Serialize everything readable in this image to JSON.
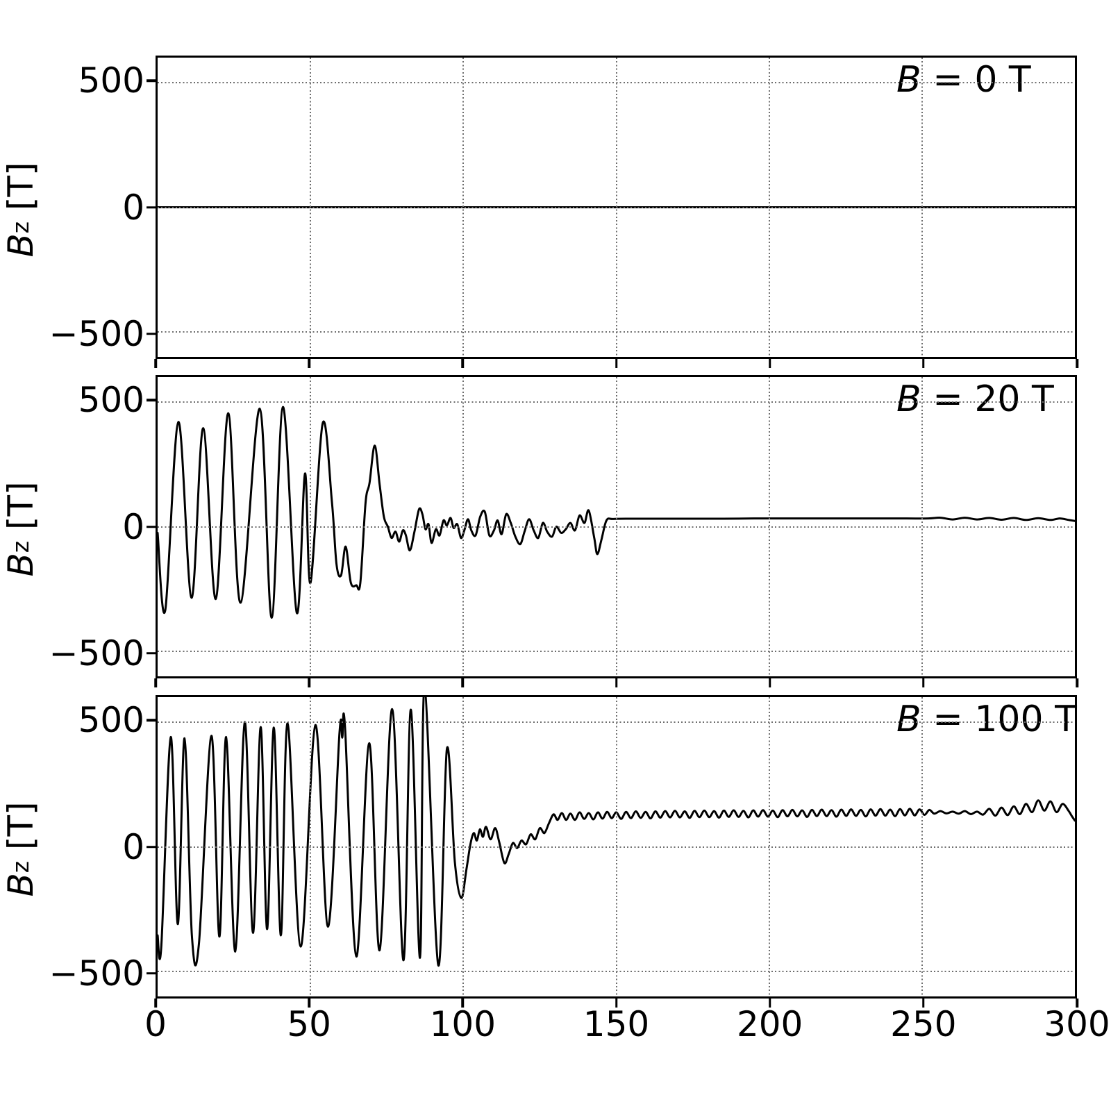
{
  "figure": {
    "background": "#ffffff",
    "data_line_color": "#000000",
    "grid_color": "#6e6e6e",
    "n_panels": 3
  },
  "x_tick_labels": [
    "0",
    "50",
    "100",
    "150",
    "200",
    "250",
    "300"
  ],
  "y_tick_labels": [
    "500",
    "0",
    "−500"
  ],
  "chart_data": [
    {
      "type": "line",
      "label_var": "B",
      "label_rest": " = 0 T",
      "ylabel_var": "B",
      "ylabel_sub": "z",
      "ylabel_unit": " [T]",
      "xlim": [
        0,
        300
      ],
      "ylim": [
        -600,
        600
      ],
      "xticks": [
        0,
        50,
        100,
        150,
        200,
        250,
        300
      ],
      "yticks": [
        500,
        0,
        -500
      ],
      "grid": true,
      "points": [
        [
          0,
          0
        ],
        [
          300,
          0
        ]
      ]
    },
    {
      "type": "line",
      "label_var": "B",
      "label_rest": " = 20 T",
      "ylabel_var": "B",
      "ylabel_sub": "z",
      "ylabel_unit": " [T]",
      "xlim": [
        0,
        300
      ],
      "ylim": [
        -600,
        600
      ],
      "xticks": [
        0,
        50,
        100,
        150,
        200,
        250,
        300
      ],
      "yticks": [
        500,
        0,
        -500
      ],
      "grid": true,
      "points": [
        [
          0,
          -25
        ],
        [
          2.5,
          -335
        ],
        [
          6.8,
          420
        ],
        [
          11.1,
          -285
        ],
        [
          14.9,
          395
        ],
        [
          19,
          -290
        ],
        [
          23.1,
          455
        ],
        [
          27.1,
          -305
        ],
        [
          33.4,
          473
        ],
        [
          37.3,
          -365
        ],
        [
          41,
          480
        ],
        [
          45.5,
          -345
        ],
        [
          48.2,
          213
        ],
        [
          50,
          -225
        ],
        [
          54,
          415
        ],
        [
          57,
          100
        ],
        [
          58.5,
          -150
        ],
        [
          60,
          -195
        ],
        [
          61.5,
          -80
        ],
        [
          63.2,
          -225
        ],
        [
          65,
          -235
        ],
        [
          66.3,
          -225
        ],
        [
          68,
          95
        ],
        [
          69.3,
          175
        ],
        [
          71,
          325
        ],
        [
          72.6,
          170
        ],
        [
          74,
          40
        ],
        [
          75.3,
          0
        ],
        [
          76.5,
          -45
        ],
        [
          77.8,
          -20
        ],
        [
          79,
          -60
        ],
        [
          80.2,
          -15
        ],
        [
          81.2,
          -35
        ],
        [
          82.5,
          -95
        ],
        [
          84,
          -20
        ],
        [
          85.5,
          70
        ],
        [
          86.6,
          50
        ],
        [
          87.6,
          -10
        ],
        [
          88.6,
          10
        ],
        [
          89.6,
          -65
        ],
        [
          91,
          -10
        ],
        [
          92.2,
          -35
        ],
        [
          93.5,
          25
        ],
        [
          94.6,
          5
        ],
        [
          95.8,
          35
        ],
        [
          96.8,
          -5
        ],
        [
          98,
          10
        ],
        [
          99.2,
          -45
        ],
        [
          100.3,
          -15
        ],
        [
          101.5,
          30
        ],
        [
          102.6,
          -15
        ],
        [
          104,
          -35
        ],
        [
          105.5,
          40
        ],
        [
          107,
          60
        ],
        [
          108.5,
          -35
        ],
        [
          110,
          -15
        ],
        [
          111.2,
          25
        ],
        [
          112.5,
          -30
        ],
        [
          114,
          50
        ],
        [
          115.5,
          15
        ],
        [
          117,
          -40
        ],
        [
          118.6,
          -70
        ],
        [
          120,
          -20
        ],
        [
          121.5,
          30
        ],
        [
          123,
          -15
        ],
        [
          124.5,
          -45
        ],
        [
          126,
          15
        ],
        [
          127.4,
          -20
        ],
        [
          129,
          -40
        ],
        [
          130.4,
          0
        ],
        [
          132,
          -25
        ],
        [
          133.5,
          -10
        ],
        [
          135,
          15
        ],
        [
          136.5,
          -15
        ],
        [
          138,
          45
        ],
        [
          139.6,
          15
        ],
        [
          141,
          65
        ],
        [
          142.8,
          -45
        ],
        [
          143.8,
          -110
        ],
        [
          145.2,
          -50
        ],
        [
          146.8,
          25
        ],
        [
          149,
          31
        ],
        [
          155,
          32
        ],
        [
          165,
          32
        ],
        [
          175,
          32
        ],
        [
          185,
          32
        ],
        [
          195,
          33
        ],
        [
          205,
          33
        ],
        [
          215,
          33
        ],
        [
          225,
          33
        ],
        [
          235,
          33
        ],
        [
          245,
          33
        ],
        [
          252,
          33
        ],
        [
          256,
          36
        ],
        [
          260,
          29
        ],
        [
          264,
          36
        ],
        [
          268,
          29
        ],
        [
          272,
          35
        ],
        [
          276,
          28
        ],
        [
          280,
          35
        ],
        [
          284,
          27
        ],
        [
          288,
          34
        ],
        [
          292,
          27
        ],
        [
          295,
          33
        ],
        [
          298,
          27
        ],
        [
          300,
          23
        ]
      ]
    },
    {
      "type": "line",
      "label_var": "B",
      "label_rest": " = 100 T",
      "ylabel_var": "B",
      "ylabel_sub": "z",
      "ylabel_unit": " [T]",
      "xlim": [
        0,
        300
      ],
      "ylim": [
        -600,
        600
      ],
      "xticks": [
        0,
        50,
        100,
        150,
        200,
        250,
        300
      ],
      "yticks": [
        500,
        0,
        -500
      ],
      "grid": true,
      "points": [
        [
          0,
          -355
        ],
        [
          1.2,
          -400
        ],
        [
          4.3,
          440
        ],
        [
          6.6,
          -310
        ],
        [
          8.8,
          435
        ],
        [
          11.2,
          -355
        ],
        [
          13.5,
          -390
        ],
        [
          17.6,
          445
        ],
        [
          20.2,
          -360
        ],
        [
          22.4,
          440
        ],
        [
          25.4,
          -420
        ],
        [
          28.5,
          500
        ],
        [
          31.2,
          -345
        ],
        [
          33.7,
          480
        ],
        [
          35.8,
          -330
        ],
        [
          38,
          478
        ],
        [
          40.3,
          -355
        ],
        [
          42.5,
          495
        ],
        [
          46.8,
          -400
        ],
        [
          51.6,
          488
        ],
        [
          55.7,
          -320
        ],
        [
          59.5,
          460
        ],
        [
          60.4,
          438
        ],
        [
          61.3,
          478
        ],
        [
          65,
          -440
        ],
        [
          69.2,
          415
        ],
        [
          72.6,
          -415
        ],
        [
          76.7,
          552
        ],
        [
          80.4,
          -455
        ],
        [
          82.8,
          550
        ],
        [
          85.8,
          -445
        ],
        [
          87.3,
          640
        ],
        [
          91.8,
          -475
        ],
        [
          94.6,
          392
        ],
        [
          97.2,
          -60
        ],
        [
          99.3,
          -205
        ],
        [
          101,
          -90
        ],
        [
          102.3,
          10
        ],
        [
          103.4,
          55
        ],
        [
          104.4,
          25
        ],
        [
          105.4,
          70
        ],
        [
          106.4,
          40
        ],
        [
          107.4,
          80
        ],
        [
          108.9,
          30
        ],
        [
          110.4,
          75
        ],
        [
          111.7,
          20
        ],
        [
          113.4,
          -65
        ],
        [
          114.8,
          -30
        ],
        [
          116.2,
          15
        ],
        [
          117.6,
          -5
        ],
        [
          119,
          25
        ],
        [
          120.5,
          10
        ],
        [
          122,
          50
        ],
        [
          123.5,
          30
        ],
        [
          125,
          75
        ],
        [
          126.5,
          55
        ],
        [
          128,
          95
        ],
        [
          129.5,
          130
        ],
        [
          130.8,
          108
        ],
        [
          132.2,
          135
        ],
        [
          133.6,
          108
        ],
        [
          135,
          133
        ],
        [
          136.5,
          108
        ],
        [
          138,
          138
        ],
        [
          139.5,
          112
        ],
        [
          141,
          135
        ],
        [
          142.5,
          110
        ],
        [
          144,
          138
        ],
        [
          145.5,
          113
        ],
        [
          147,
          140
        ],
        [
          148.5,
          115
        ],
        [
          150,
          138
        ],
        [
          151.6,
          112
        ],
        [
          153.2,
          140
        ],
        [
          154.8,
          115
        ],
        [
          156.4,
          142
        ],
        [
          158,
          116
        ],
        [
          159.6,
          140
        ],
        [
          161.2,
          114
        ],
        [
          162.8,
          142
        ],
        [
          164.4,
          117
        ],
        [
          166,
          143
        ],
        [
          167.6,
          118
        ],
        [
          169.2,
          144
        ],
        [
          170.8,
          118
        ],
        [
          172.4,
          142
        ],
        [
          174,
          116
        ],
        [
          175.6,
          144
        ],
        [
          177.2,
          119
        ],
        [
          178.8,
          145
        ],
        [
          180.4,
          119
        ],
        [
          182,
          143
        ],
        [
          183.6,
          117
        ],
        [
          185.2,
          145
        ],
        [
          186.8,
          120
        ],
        [
          188.4,
          146
        ],
        [
          190,
          120
        ],
        [
          191.6,
          144
        ],
        [
          193.2,
          118
        ],
        [
          194.8,
          146
        ],
        [
          196.4,
          121
        ],
        [
          198,
          147
        ],
        [
          199.6,
          121
        ],
        [
          201.2,
          145
        ],
        [
          202.8,
          119
        ],
        [
          204.4,
          147
        ],
        [
          206,
          122
        ],
        [
          207.6,
          148
        ],
        [
          209.2,
          122
        ],
        [
          210.8,
          146
        ],
        [
          212.4,
          120
        ],
        [
          214,
          148
        ],
        [
          215.6,
          123
        ],
        [
          217.2,
          149
        ],
        [
          218.8,
          123
        ],
        [
          220.4,
          147
        ],
        [
          222,
          121
        ],
        [
          223.6,
          149
        ],
        [
          225.2,
          124
        ],
        [
          226.8,
          150
        ],
        [
          228.4,
          124
        ],
        [
          230,
          148
        ],
        [
          231.6,
          122
        ],
        [
          233.2,
          150
        ],
        [
          234.8,
          125
        ],
        [
          236.4,
          151
        ],
        [
          238,
          125
        ],
        [
          239.6,
          149
        ],
        [
          241.2,
          123
        ],
        [
          242.8,
          151
        ],
        [
          244.4,
          126
        ],
        [
          246,
          152
        ],
        [
          247.6,
          126
        ],
        [
          249.2,
          150
        ],
        [
          250.8,
          128
        ],
        [
          252.4,
          148
        ],
        [
          254,
          133
        ],
        [
          256,
          143
        ],
        [
          258,
          134
        ],
        [
          260,
          141
        ],
        [
          262,
          133
        ],
        [
          264,
          143
        ],
        [
          266,
          131
        ],
        [
          268,
          141
        ],
        [
          270,
          129
        ],
        [
          272,
          152
        ],
        [
          274,
          125
        ],
        [
          276,
          157
        ],
        [
          278,
          127
        ],
        [
          280,
          162
        ],
        [
          282,
          131
        ],
        [
          284,
          172
        ],
        [
          286,
          139
        ],
        [
          288,
          186
        ],
        [
          290,
          145
        ],
        [
          292,
          182
        ],
        [
          294,
          139
        ],
        [
          296,
          172
        ],
        [
          298,
          143
        ],
        [
          299,
          123
        ],
        [
          300,
          105
        ]
      ]
    }
  ]
}
